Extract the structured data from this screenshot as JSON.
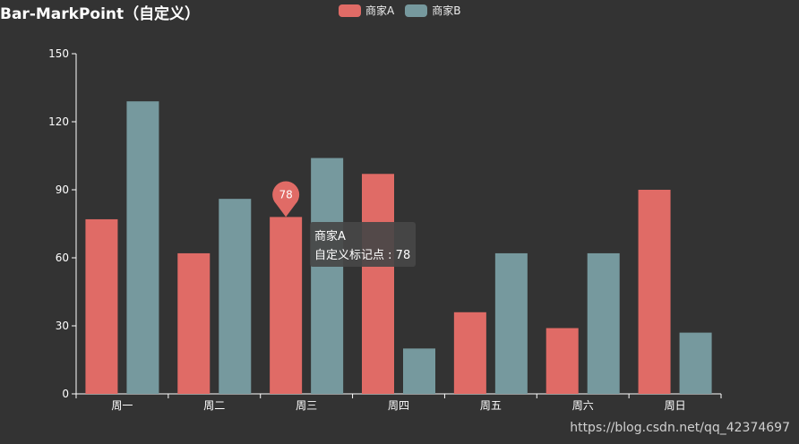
{
  "title": "Bar-MarkPoint（自定义）",
  "legend": [
    {
      "name": "商家A",
      "color": "#e06b66"
    },
    {
      "name": "商家B",
      "color": "#76999e"
    }
  ],
  "tooltip": {
    "series": "商家A",
    "label": "自定义标记点",
    "separator": " : ",
    "value": "78"
  },
  "watermark": "https://blog.csdn.net/qq_42374697",
  "chart_data": {
    "type": "bar",
    "categories": [
      "周一",
      "周二",
      "周三",
      "周四",
      "周五",
      "周六",
      "周日"
    ],
    "series": [
      {
        "name": "商家A",
        "color": "#e06b66",
        "values": [
          77,
          62,
          78,
          97,
          36,
          29,
          90
        ]
      },
      {
        "name": "商家B",
        "color": "#76999e",
        "values": [
          129,
          86,
          104,
          20,
          62,
          62,
          27
        ]
      }
    ],
    "ylim": [
      0,
      150
    ],
    "yticks": [
      0,
      30,
      60,
      90,
      120,
      150
    ],
    "axis_color": "#ffffff",
    "mark_point": {
      "series": "商家A",
      "category": "周三",
      "value": 78,
      "label": "78"
    }
  }
}
